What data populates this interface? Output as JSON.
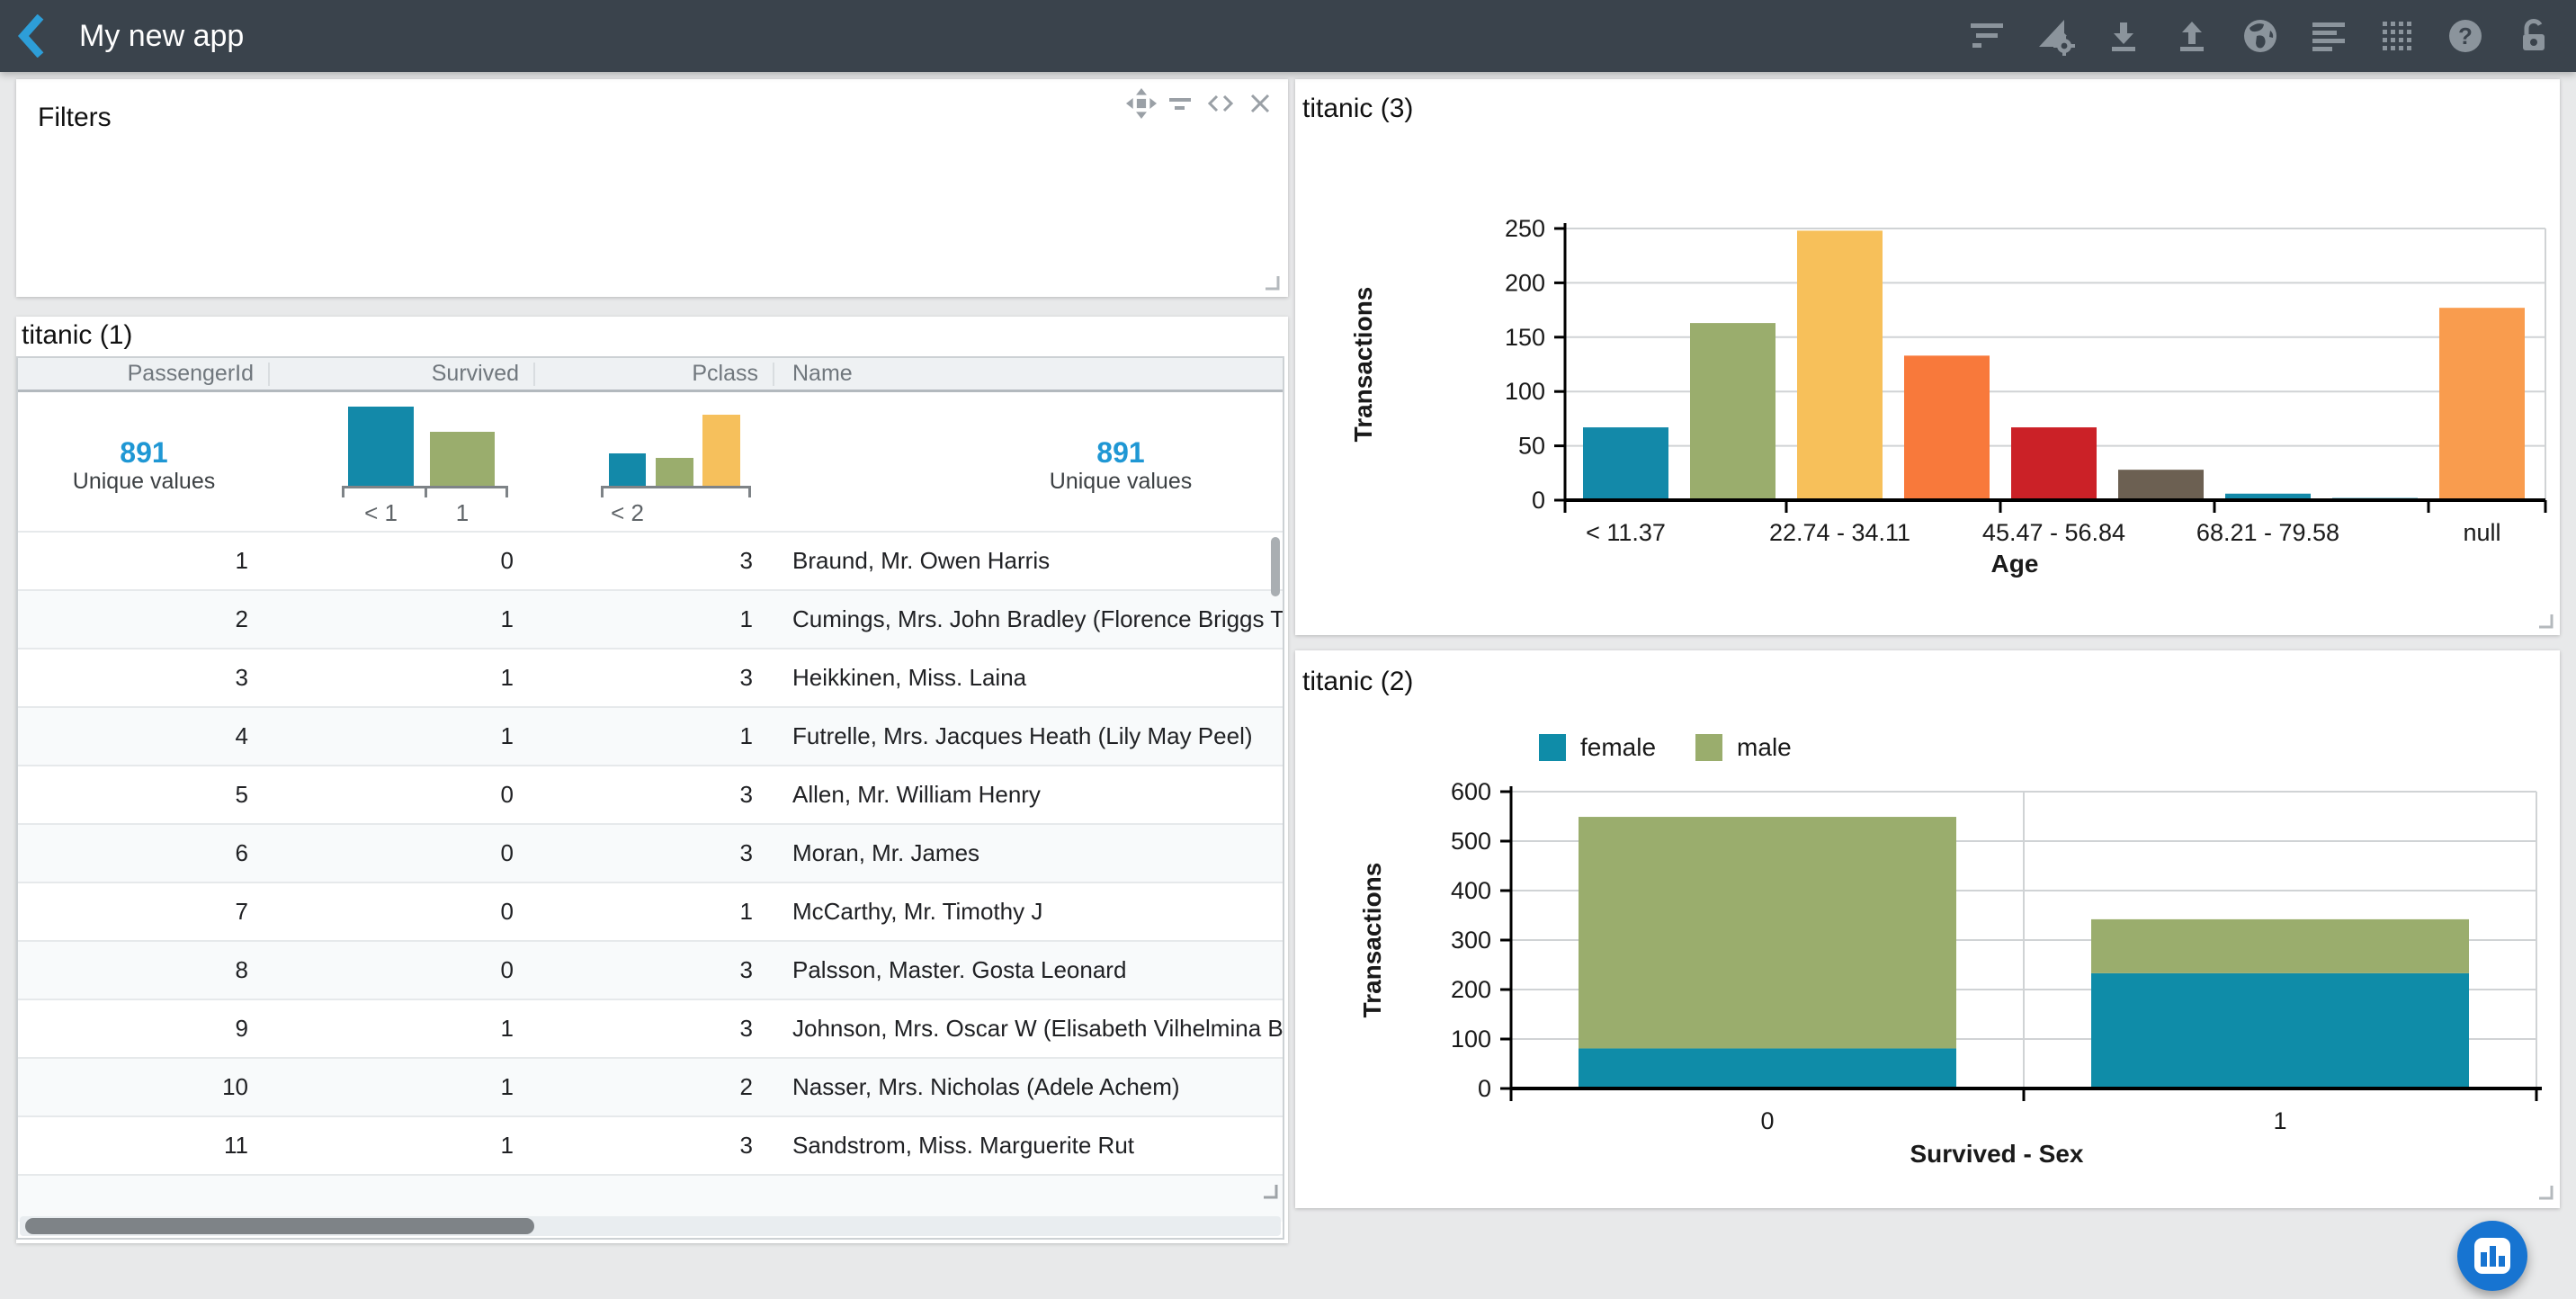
{
  "app": {
    "title": "My new app",
    "toolbar_icons": [
      "filter",
      "chart-settings",
      "download",
      "upload",
      "globe",
      "align-left",
      "grid-dots",
      "help",
      "lock-open"
    ],
    "colors": {
      "topbar": "#3a434c",
      "accent_blue": "#2d9ed8",
      "icon_gray": "#8b949c",
      "fab_blue": "#1774d1"
    }
  },
  "filters_panel": {
    "title": "Filters",
    "corner_icons": [
      "move",
      "filter",
      "code",
      "close"
    ]
  },
  "table_panel": {
    "title": "titanic (1)",
    "columns": [
      "PassengerId",
      "Survived",
      "Pclass",
      "Name"
    ],
    "summary": {
      "passengerid": {
        "value": "891",
        "label": "Unique values"
      },
      "name": {
        "value": "891",
        "label": "Unique values"
      },
      "survived_hist": {
        "bars": [
          {
            "label": "< 1",
            "h": 88,
            "w": 73,
            "x": 7,
            "color": "#1389a9"
          },
          {
            "label": "1",
            "h": 60,
            "w": 72,
            "x": 98,
            "color": "#9aad6d"
          }
        ]
      },
      "pclass_hist": {
        "bars": [
          {
            "label": "< 2",
            "h": 36,
            "w": 41,
            "x": 9,
            "color": "#1389a9"
          },
          {
            "label": "",
            "h": 31,
            "w": 42,
            "x": 61,
            "color": "#9aad6d"
          },
          {
            "label": "",
            "h": 79,
            "w": 42,
            "x": 113,
            "color": "#f6c05c"
          }
        ]
      }
    },
    "rows": [
      [
        "1",
        "0",
        "3",
        "Braund, Mr. Owen Harris"
      ],
      [
        "2",
        "1",
        "1",
        "Cumings, Mrs. John Bradley (Florence Briggs Tha"
      ],
      [
        "3",
        "1",
        "3",
        "Heikkinen, Miss. Laina"
      ],
      [
        "4",
        "1",
        "1",
        "Futrelle, Mrs. Jacques Heath (Lily May Peel)"
      ],
      [
        "5",
        "0",
        "3",
        "Allen, Mr. William Henry"
      ],
      [
        "6",
        "0",
        "3",
        "Moran, Mr. James"
      ],
      [
        "7",
        "0",
        "1",
        "McCarthy, Mr. Timothy J"
      ],
      [
        "8",
        "0",
        "3",
        "Palsson, Master. Gosta Leonard"
      ],
      [
        "9",
        "1",
        "3",
        "Johnson, Mrs. Oscar W (Elisabeth Vilhelmina Ber"
      ],
      [
        "10",
        "1",
        "2",
        "Nasser, Mrs. Nicholas (Adele Achem)"
      ],
      [
        "11",
        "1",
        "3",
        "Sandstrom, Miss. Marguerite Rut"
      ]
    ]
  },
  "chart3_panel": {
    "title": "titanic (3)"
  },
  "chart2_panel": {
    "title": "titanic (2)"
  },
  "chart_data": [
    {
      "id": "chart3",
      "type": "bar",
      "title": "titanic (3)",
      "values": [
        67,
        163,
        248,
        133,
        67,
        28,
        6,
        2,
        177
      ],
      "bar_colors": [
        "#1389a9",
        "#9aad6d",
        "#f7c05a",
        "#f8793b",
        "#cb2127",
        "#6c6052",
        "#1389a9",
        "#1389a9",
        "#f99c4e"
      ],
      "x_tick_labels": [
        "< 11.37",
        "22.74 - 34.11",
        "45.47 - 56.84",
        "68.21 - 79.58",
        "null"
      ],
      "label_bar_indices": [
        0,
        2,
        4,
        6,
        8
      ],
      "xlabel": "Age",
      "ylabel": "Transactions",
      "ylim": [
        0,
        250
      ],
      "ytick_step": 50,
      "grid": true,
      "legend": "none"
    },
    {
      "id": "chart2",
      "type": "stacked-bar",
      "title": "titanic (2)",
      "categories": [
        "0",
        "1"
      ],
      "series": [
        {
          "name": "female",
          "color": "#0f8ca8",
          "values": [
            81,
            233
          ]
        },
        {
          "name": "male",
          "color": "#9aad6d",
          "values": [
            468,
            109
          ]
        }
      ],
      "stack_totals": [
        549,
        342
      ],
      "xlabel": "Survived - Sex",
      "ylabel": "Transactions",
      "ylim": [
        0,
        600
      ],
      "ytick_step": 100,
      "grid": true,
      "legend": "top"
    }
  ],
  "fab": {
    "icon": "bar-chart"
  }
}
